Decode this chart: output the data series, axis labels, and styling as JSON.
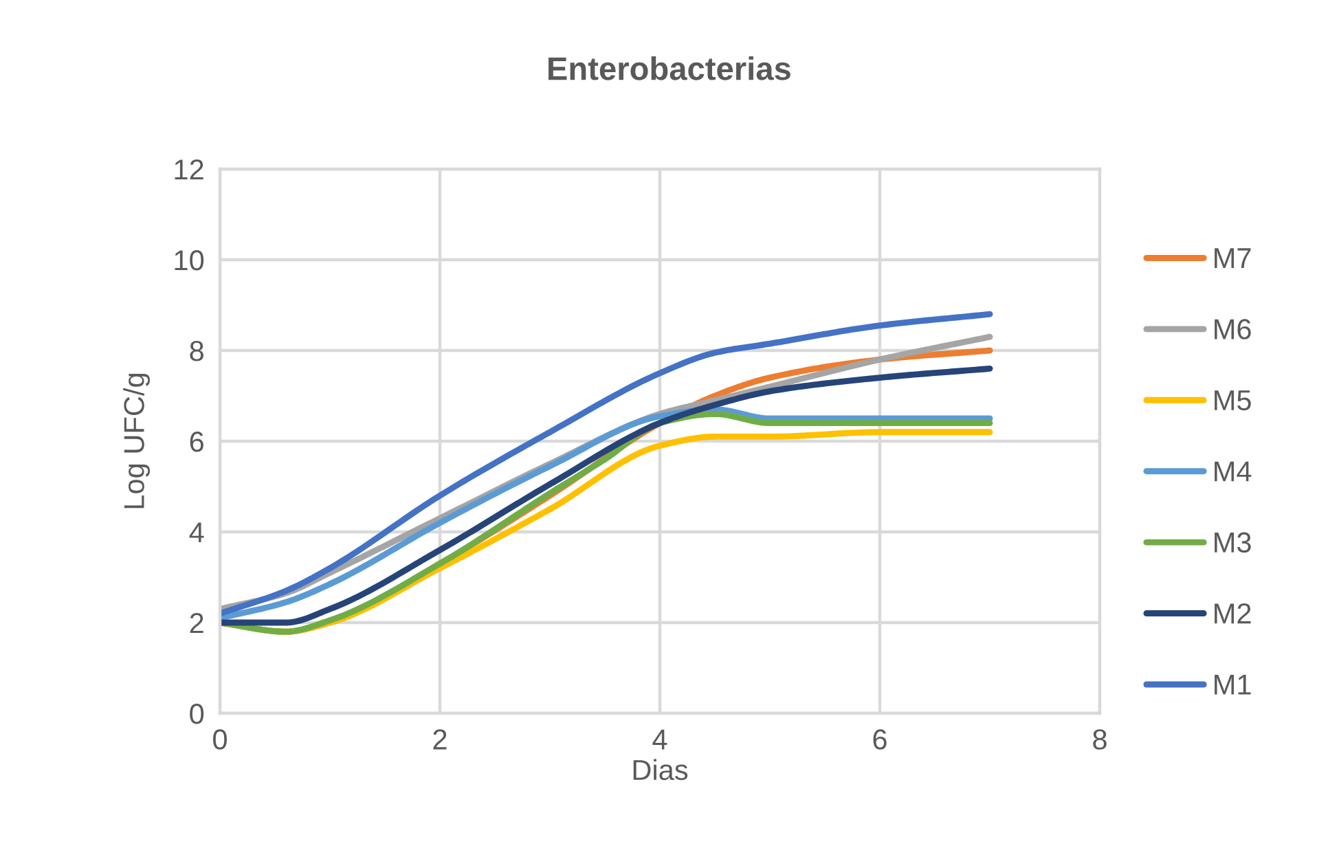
{
  "chart_data": {
    "type": "line",
    "title": "Enterobacterias",
    "xlabel": "Dias",
    "ylabel": "Log UFC/g",
    "x": [
      0,
      0.6,
      1,
      2,
      3,
      4,
      4.5,
      5,
      6,
      7
    ],
    "series": [
      {
        "name": "M7",
        "color": "#ed7d31",
        "values": [
          2.0,
          1.8,
          2.0,
          3.3,
          4.8,
          6.4,
          7.0,
          7.4,
          7.8,
          8.0
        ]
      },
      {
        "name": "M6",
        "color": "#a5a5a5",
        "values": [
          2.3,
          2.65,
          3.1,
          4.3,
          5.5,
          6.6,
          6.9,
          7.2,
          7.8,
          8.3
        ]
      },
      {
        "name": "M5",
        "color": "#ffc000",
        "values": [
          2.0,
          1.8,
          2.0,
          3.2,
          4.5,
          5.9,
          6.1,
          6.1,
          6.2,
          6.2
        ]
      },
      {
        "name": "M4",
        "color": "#5b9bd5",
        "values": [
          2.1,
          2.45,
          2.85,
          4.2,
          5.45,
          6.55,
          6.7,
          6.5,
          6.5,
          6.5
        ]
      },
      {
        "name": "M3",
        "color": "#70ad47",
        "x": [
          0,
          0.6,
          1,
          2,
          3,
          3.5,
          4,
          4.5,
          5,
          6,
          7
        ],
        "values": [
          2.0,
          1.8,
          2.05,
          3.3,
          4.85,
          5.6,
          6.4,
          6.6,
          6.4,
          6.4,
          6.4
        ]
      },
      {
        "name": "M2",
        "color": "#264478",
        "values": [
          2.0,
          2.0,
          2.3,
          3.6,
          5.05,
          6.4,
          6.8,
          7.1,
          7.4,
          7.6
        ]
      },
      {
        "name": "M1",
        "color": "#4472c4",
        "values": [
          2.2,
          2.7,
          3.2,
          4.8,
          6.2,
          7.5,
          7.95,
          8.15,
          8.55,
          8.8
        ]
      }
    ],
    "xlim": [
      0,
      8
    ],
    "xticks": [
      0,
      2,
      4,
      6,
      8
    ],
    "ylim": [
      0,
      12
    ],
    "yticks": [
      0,
      2,
      4,
      6,
      8,
      10,
      12
    ],
    "grid": true,
    "legend": "right"
  }
}
